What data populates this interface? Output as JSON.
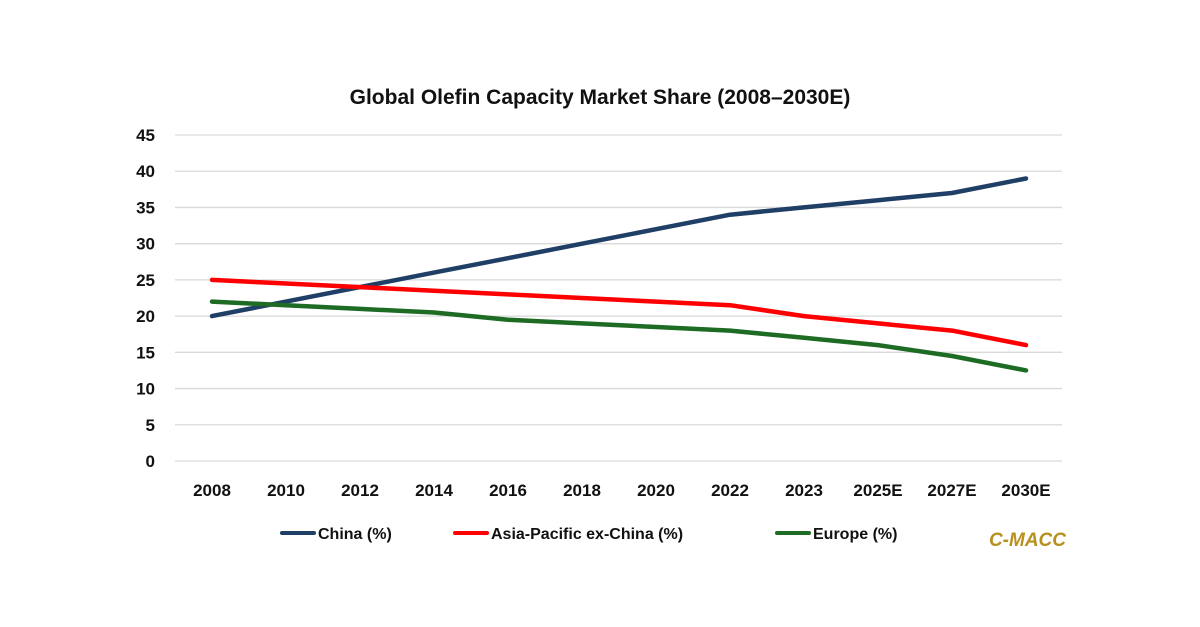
{
  "chart_data": {
    "type": "line",
    "title": "Global Olefin Capacity Market Share (2008–2030E)",
    "xlabel": "",
    "ylabel": "",
    "categories": [
      "2008",
      "2010",
      "2012",
      "2014",
      "2016",
      "2018",
      "2020",
      "2022",
      "2023",
      "2025E",
      "2027E",
      "2030E"
    ],
    "ylim": [
      0,
      45
    ],
    "yticks": [
      0,
      5,
      10,
      15,
      20,
      25,
      30,
      35,
      40,
      45
    ],
    "grid": true,
    "legend_position": "bottom",
    "series": [
      {
        "name": "China (%)",
        "color": "#1f3f66",
        "values": [
          20,
          22,
          24,
          26,
          28,
          30,
          32,
          34,
          35,
          36,
          37,
          39
        ]
      },
      {
        "name": "Asia-Pacific ex-China (%)",
        "color": "#ff0000",
        "values": [
          25,
          24.5,
          24,
          23.5,
          23,
          22.5,
          22,
          21.5,
          20,
          19,
          18,
          16
        ]
      },
      {
        "name": "Europe (%)",
        "color": "#1e6b24",
        "values": [
          22,
          21.5,
          21,
          20.5,
          19.5,
          19,
          18.5,
          18,
          17,
          16,
          14.5,
          12.5
        ]
      }
    ],
    "annotations": [
      {
        "text": "C-MACC",
        "role": "source-brand",
        "color": "#b8901e"
      }
    ]
  }
}
